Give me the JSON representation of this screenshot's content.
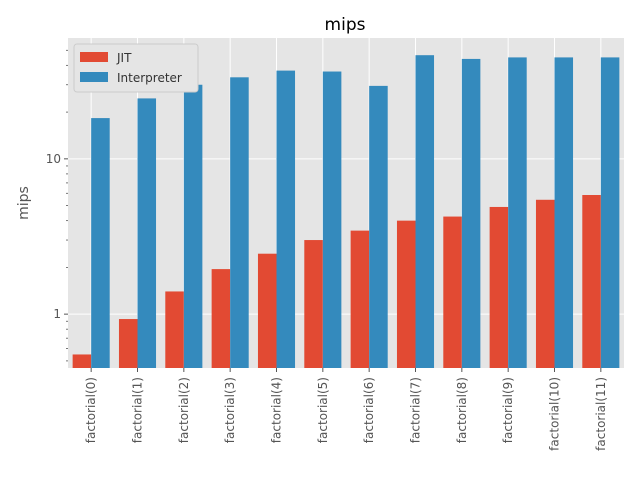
{
  "chart_data": {
    "type": "bar",
    "title": "mips",
    "xlabel": "",
    "ylabel": "mips",
    "yscale": "log",
    "ylim": [
      0.45,
      60
    ],
    "y_ticks": [
      1,
      10
    ],
    "y_tick_labels": [
      "1",
      "10"
    ],
    "grid": true,
    "legend_position": "top-left",
    "categories": [
      "factorial(0)",
      "factorial(1)",
      "factorial(2)",
      "factorial(3)",
      "factorial(4)",
      "factorial(5)",
      "factorial(6)",
      "factorial(7)",
      "factorial(8)",
      "factorial(9)",
      "factorial(10)",
      "factorial(11)"
    ],
    "series": [
      {
        "name": "JIT",
        "color": "#E24A33",
        "values": [
          0.55,
          0.93,
          1.4,
          1.95,
          2.45,
          3.0,
          3.45,
          4.0,
          4.25,
          4.9,
          5.45,
          5.85
        ]
      },
      {
        "name": "Interpreter",
        "color": "#348ABD",
        "values": [
          18.3,
          24.5,
          30.0,
          33.5,
          37.0,
          36.5,
          29.5,
          46.5,
          44.0,
          45.0,
          45.0,
          45.0
        ]
      }
    ]
  }
}
